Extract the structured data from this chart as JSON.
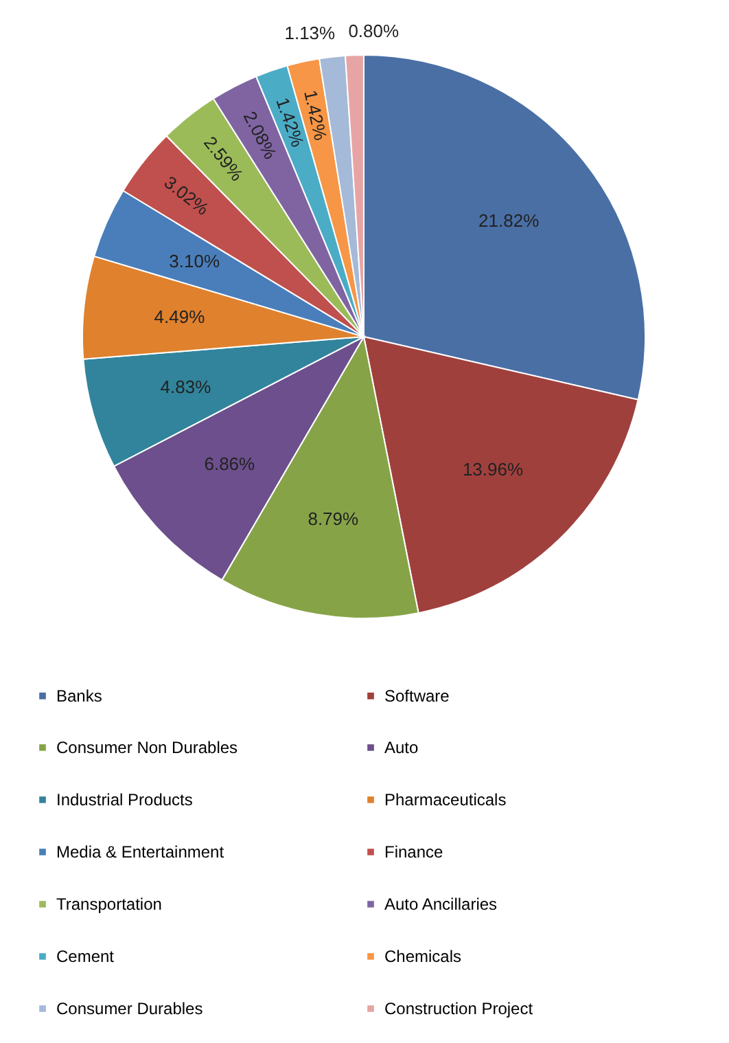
{
  "chart_data": {
    "type": "pie",
    "categories": [
      "Banks",
      "Software",
      "Consumer Non Durables",
      "Auto",
      "Industrial Products",
      "Pharmaceuticals",
      "Media & Entertainment",
      "Finance",
      "Transportation",
      "Auto Ancillaries",
      "Cement",
      "Chemicals",
      "Consumer Durables",
      "Construction Project"
    ],
    "values": [
      21.82,
      13.96,
      8.79,
      6.86,
      4.83,
      4.49,
      3.1,
      3.02,
      2.59,
      2.08,
      1.42,
      1.42,
      1.13,
      0.8
    ],
    "value_labels": [
      "21.82%",
      "13.96%",
      "8.79%",
      "6.86%",
      "4.83%",
      "4.49%",
      "3.10%",
      "3.02%",
      "2.59%",
      "2.08%",
      "1.42%",
      "1.42%",
      "1.13%",
      "0.80%"
    ],
    "colors": [
      "#4a6fa5",
      "#a0403d",
      "#86a447",
      "#6c4f8c",
      "#31849b",
      "#e0812e",
      "#4a7ebb",
      "#c0504d",
      "#9bbb59",
      "#8064a2",
      "#4bacc6",
      "#f79646",
      "#a5b9d9",
      "#e6a5a4"
    ],
    "legend": "bottom"
  }
}
